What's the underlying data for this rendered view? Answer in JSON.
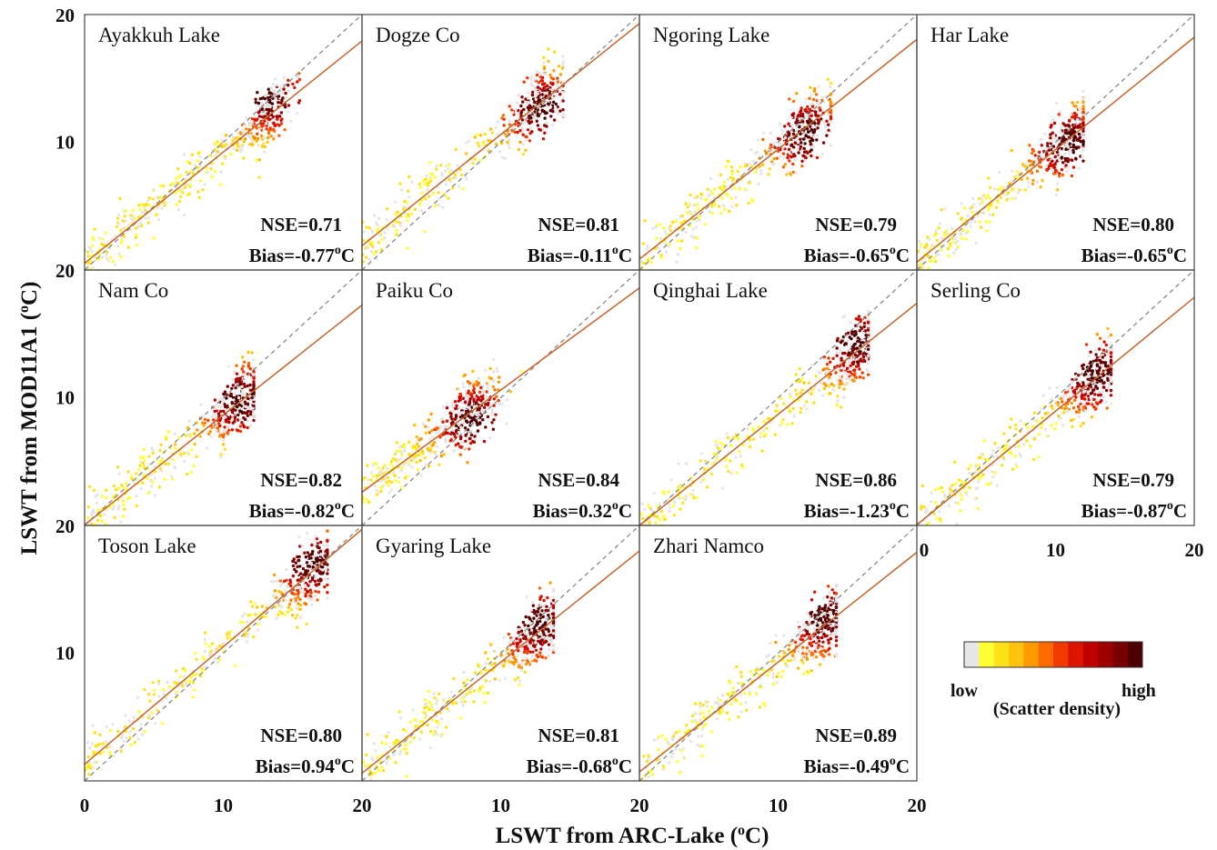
{
  "chart_data": {
    "type": "scatter",
    "layout": "3x4 small multiples",
    "x_label": "LSWT from ARC-Lake (",
    "x_label_sup": "o",
    "x_label_end": "C)",
    "y_label": "LSWT from MOD11A1 (",
    "y_label_sup": "o",
    "y_label_end": "C)",
    "xlim": [
      0,
      20
    ],
    "ylim": [
      0,
      20
    ],
    "tick_labels": [
      "0",
      "10",
      "20"
    ],
    "reference_lines": [
      "1:1 line (dashed gray)",
      "regression line (solid orange)"
    ],
    "colorbar": {
      "low": "low",
      "high": "high",
      "title": "(Scatter density)",
      "colors": [
        "#e6e6e6",
        "#ffff33",
        "#ffe11a",
        "#ffc20d",
        "#ff9900",
        "#ff6a00",
        "#f23b00",
        "#dd1400",
        "#c00000",
        "#9e0000",
        "#780000",
        "#4d0000"
      ]
    },
    "panels": [
      {
        "name": "Ayakkuh Lake",
        "nse": "NSE=0.71",
        "bias_value": "-0.77",
        "slope": 0.87,
        "intercept": 0.53,
        "cluster": [
          13.2,
          13.6
        ],
        "clip": 15.5
      },
      {
        "name": "Dogze Co",
        "nse": "NSE=0.81",
        "bias_value": "-0.11",
        "slope": 0.87,
        "intercept": 1.9,
        "cluster": [
          13.0,
          12.6
        ],
        "clip": 14.5
      },
      {
        "name": "Ngoring Lake",
        "nse": "NSE=0.79",
        "bias_value": "-0.65",
        "slope": 0.86,
        "intercept": 0.85,
        "cluster": [
          12.0,
          10.6
        ],
        "clip": 13.8
      },
      {
        "name": "Har Lake",
        "nse": "NSE=0.80",
        "bias_value": "-0.65",
        "slope": 0.88,
        "intercept": 0.62,
        "cluster": [
          11.0,
          9.8
        ],
        "clip": 12.0
      },
      {
        "name": "Nam Co",
        "nse": "NSE=0.82",
        "bias_value": "-0.82",
        "slope": 0.86,
        "intercept": 0.05,
        "cluster": [
          11.2,
          9.8
        ],
        "clip": 12.2
      },
      {
        "name": "Paiku Co",
        "nse": "NSE=0.84",
        "bias_value": "0.32",
        "slope": 0.8,
        "intercept": 2.6,
        "cluster": [
          8.0,
          8.2
        ],
        "clip": 11.5
      },
      {
        "name": "Qinghai Lake",
        "nse": "NSE=0.86",
        "bias_value": "-1.23",
        "slope": 0.87,
        "intercept": 0.0,
        "cluster": [
          15.6,
          14.3
        ],
        "clip": 16.5
      },
      {
        "name": "Serling Co",
        "nse": "NSE=0.79",
        "bias_value": "-0.87",
        "slope": 0.89,
        "intercept": 0.05,
        "cluster": [
          12.9,
          11.9
        ],
        "clip": 14.0
      },
      {
        "name": "Toson Lake",
        "nse": "NSE=0.80",
        "bias_value": "0.94",
        "slope": 0.92,
        "intercept": 1.3,
        "cluster": [
          16.4,
          17.0
        ],
        "clip": 17.5
      },
      {
        "name": "Gyaring Lake",
        "nse": "NSE=0.81",
        "bias_value": "-0.68",
        "slope": 0.87,
        "intercept": 0.6,
        "cluster": [
          12.7,
          12.3
        ],
        "clip": 13.8
      },
      {
        "name": "Zhari Namco",
        "nse": "NSE=0.89",
        "bias_value": "-0.49",
        "slope": 0.86,
        "intercept": 0.7,
        "cluster": [
          13.3,
          12.8
        ],
        "clip": 14.2
      }
    ],
    "bias_prefix": "Bias=",
    "bias_sup": "o",
    "bias_unit": "C"
  }
}
